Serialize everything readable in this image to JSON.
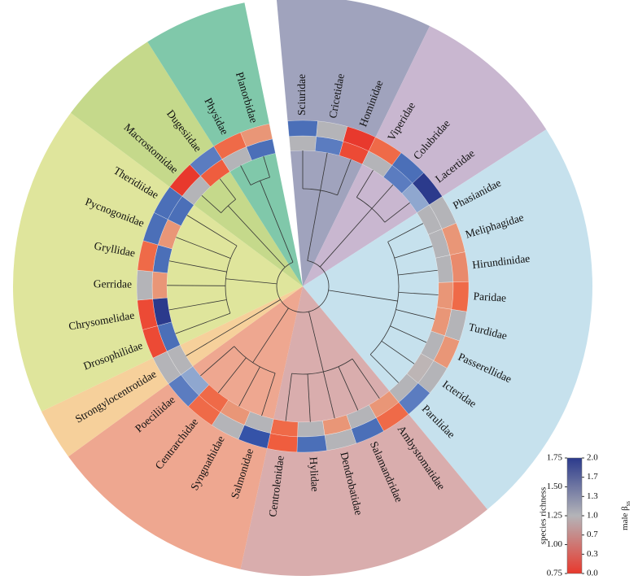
{
  "clades": [
    {
      "color": "#a0a3bd",
      "families": [
        {
          "name": "Sciuridae",
          "outer": "#4b6fb8",
          "inner": "#b4b4b8"
        },
        {
          "name": "Cricetidae",
          "outer": "#b4b4b8",
          "inner": "#5b7cc0"
        },
        {
          "name": "Hominidae",
          "outer": "#e8392d",
          "inner": "#ec4a35"
        }
      ]
    },
    {
      "color": "#c9b7d0",
      "families": [
        {
          "name": "Viperidae",
          "outer": "#ef6a48",
          "inner": "#b4b4b8"
        },
        {
          "name": "Colubridae",
          "outer": "#4b6fb8",
          "inner": "#5b7cc0"
        },
        {
          "name": "Lacertidae",
          "outer": "#2b3a8c",
          "inner": "#8fa7cf"
        }
      ]
    },
    {
      "color": "#c6e1ed",
      "families": [
        {
          "name": "Phasianidae",
          "outer": "#b4b4b8",
          "inner": "#b4b4b8"
        },
        {
          "name": "Meliphagidae",
          "outer": "#e99677",
          "inner": "#b4b4b8"
        },
        {
          "name": "Hirundinidae",
          "outer": "#e98a6c",
          "inner": "#b4b4b8"
        },
        {
          "name": "Paridae",
          "outer": "#ef6a48",
          "inner": "#e99677"
        },
        {
          "name": "Turdidae",
          "outer": "#b4b4b8",
          "inner": "#e99677"
        },
        {
          "name": "Passerellidae",
          "outer": "#e99677",
          "inner": "#b4b4b8"
        },
        {
          "name": "Icteridae",
          "outer": "#b4b4b8",
          "inner": "#bdb5b5"
        },
        {
          "name": "Parulidae",
          "outer": "#5b7cc0",
          "inner": "#b4b4b8"
        }
      ]
    },
    {
      "color": "#d9adad",
      "families": [
        {
          "name": "Ambystomatidae",
          "outer": "#ef6a48",
          "inner": "#e99677"
        },
        {
          "name": "Salamandridae",
          "outer": "#4b6fb8",
          "inner": "#b4b4b8"
        },
        {
          "name": "Dendrobatidae",
          "outer": "#b4b4b8",
          "inner": "#e99677"
        },
        {
          "name": "Hylidae",
          "outer": "#4b6fb8",
          "inner": "#b4b4b8"
        },
        {
          "name": "Centrolenidae",
          "outer": "#ef5d3e",
          "inner": "#ef6a48"
        }
      ]
    },
    {
      "color": "#eea790",
      "families": [
        {
          "name": "Salmonidae",
          "outer": "#3553a8",
          "inner": "#b4b4b8"
        },
        {
          "name": "Syngnathidae",
          "outer": "#b4b4b8",
          "inner": "#e99677"
        },
        {
          "name": "Centrarchidae",
          "outer": "#ef6a48",
          "inner": "#ef6a48"
        },
        {
          "name": "Poeciliidae",
          "outer": "#5b7cc0",
          "inner": "#8fa7cf"
        }
      ]
    },
    {
      "color": "#f6d09b",
      "families": [
        {
          "name": "Strongylocentrotidae",
          "outer": "#b4b4b8",
          "inner": "#b4b4b8"
        }
      ]
    },
    {
      "color": "#dfe59c",
      "families": [
        {
          "name": "Drosophilidae",
          "outer": "#ec4a35",
          "inner": "#4b6fb8"
        },
        {
          "name": "Chrysomelidae",
          "outer": "#ec4a35",
          "inner": "#2b3a8c"
        },
        {
          "name": "Gerridae",
          "outer": "#b4b4b8",
          "inner": "#e99677"
        },
        {
          "name": "Gryllidae",
          "outer": "#ef6a48",
          "inner": "#4b6fb8"
        },
        {
          "name": "Pycnogonidae",
          "outer": "#4b6fb8",
          "inner": "#e99677"
        },
        {
          "name": "Theridiidae",
          "outer": "#4b6fb8",
          "inner": "#4b6fb8"
        }
      ]
    },
    {
      "color": "#c5d98b",
      "families": [
        {
          "name": "Macrostomidae",
          "outer": "#e8392d",
          "inner": "#b4b4b8"
        },
        {
          "name": "Dugesiidae",
          "outer": "#5b7cc0",
          "inner": "#ef5d3e"
        }
      ]
    },
    {
      "color": "#80c8aa",
      "families": [
        {
          "name": "Physidae",
          "outer": "#ef6a48",
          "inner": "#b4b4b8"
        },
        {
          "name": "Planorbidae",
          "outer": "#e99677",
          "inner": "#4b6fb8"
        }
      ]
    }
  ],
  "legend": {
    "left_title": "species richness",
    "left_ticks": [
      "0.75",
      "1.00",
      "1.25",
      "1.50",
      "1.75"
    ],
    "right_title": "male β",
    "right_title_sub": "ss",
    "right_ticks": [
      "0.0",
      "0.3",
      "0.7",
      "1.0",
      "1.3",
      "1.7",
      "2.0"
    ],
    "colors": [
      "#e8392d",
      "#b4b4b8",
      "#2b3a8c"
    ]
  }
}
